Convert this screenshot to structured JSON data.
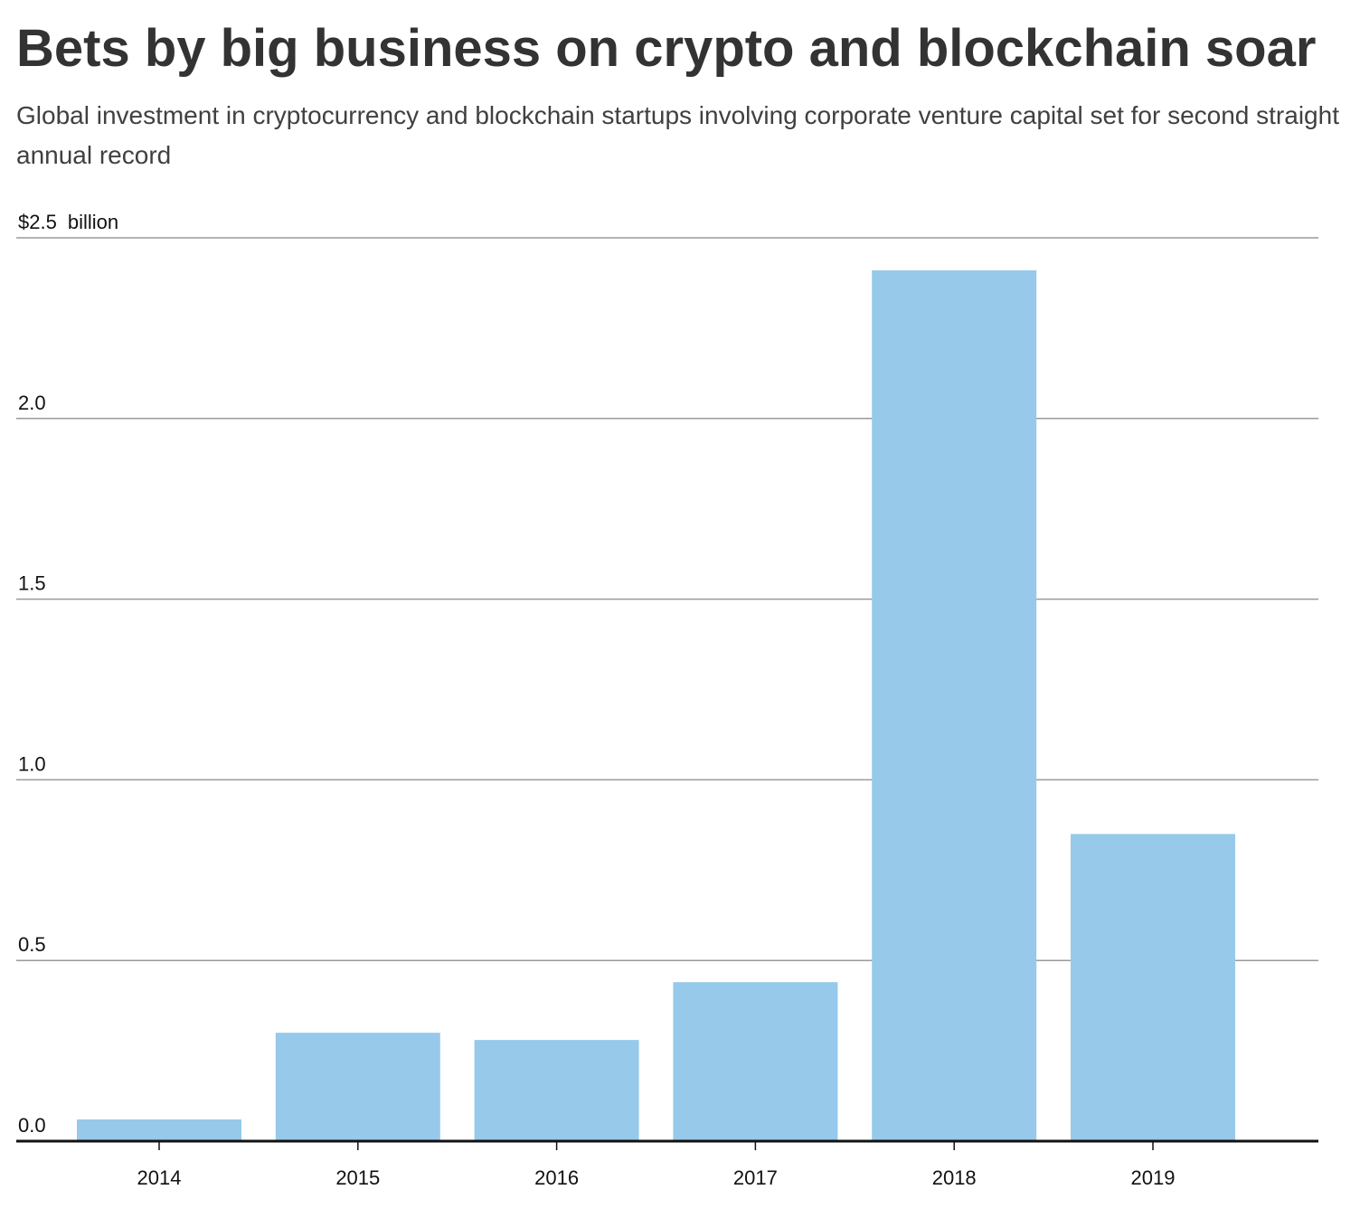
{
  "title": "Bets by big business on crypto and blockchain soar",
  "subtitle": "Global investment in cryptocurrency and blockchain startups involving corporate venture capital set for second straight annual record",
  "colors": {
    "bar": "#97c9eb",
    "gridline": "#9a9a9a",
    "baseline": "#111111",
    "text": "#333333"
  },
  "chart_data": {
    "type": "bar",
    "categories": [
      "2014",
      "2015",
      "2016",
      "2017",
      "2018",
      "2019"
    ],
    "values": [
      0.06,
      0.3,
      0.28,
      0.44,
      2.41,
      0.85
    ],
    "unit_label": "billion",
    "ylim": [
      0,
      2.5
    ],
    "yticks": [
      {
        "value": 0,
        "label": "0.0"
      },
      {
        "value": 0.5,
        "label": "0.5"
      },
      {
        "value": 1.0,
        "label": "1.0"
      },
      {
        "value": 1.5,
        "label": "1.5"
      },
      {
        "value": 2.0,
        "label": "2.0"
      },
      {
        "value": 2.5,
        "label": "$2.5"
      }
    ],
    "grid": true,
    "xlabel": "",
    "ylabel": ""
  }
}
